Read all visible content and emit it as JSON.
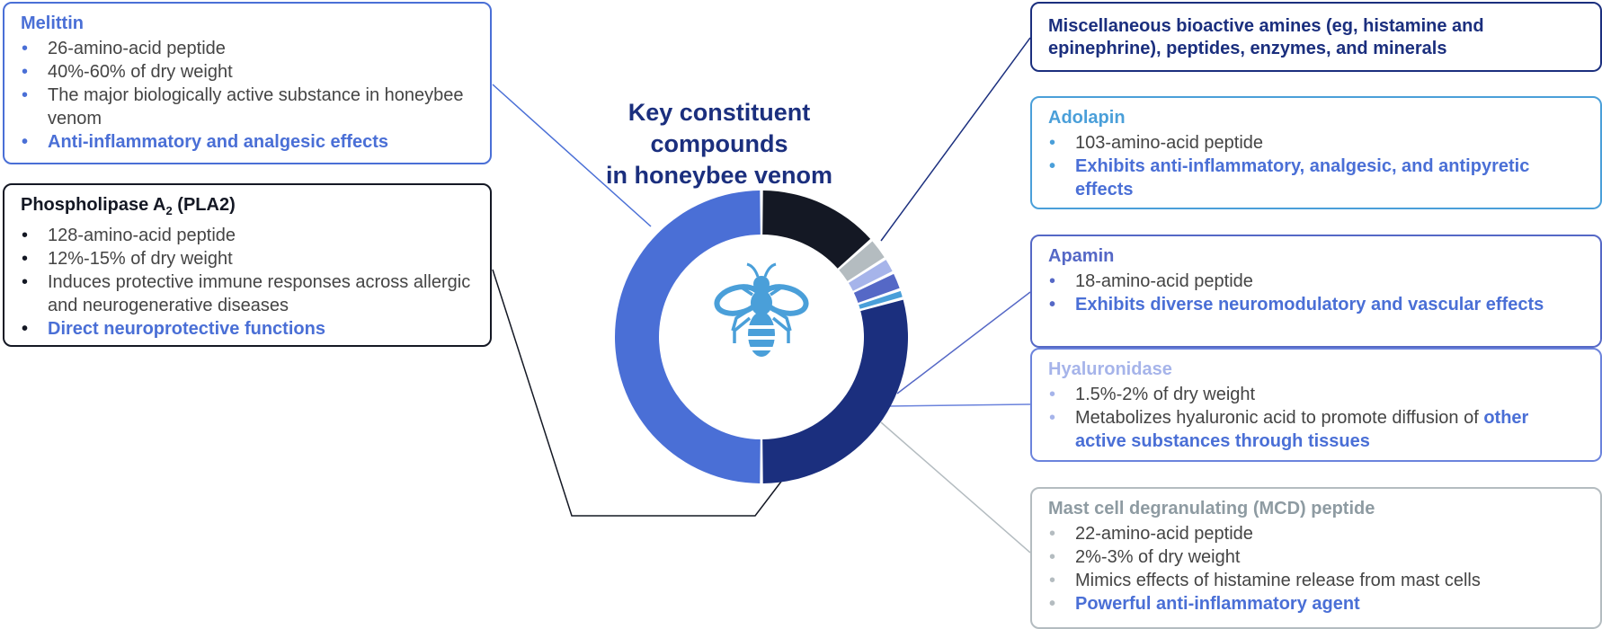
{
  "title": {
    "line1": "Key constituent compounds",
    "line2": "in honeybee venom"
  },
  "chart_data": {
    "type": "pie",
    "title": "Key constituent compounds in honeybee venom",
    "series": [
      {
        "name": "Melittin",
        "value": 50,
        "color": "#4a6fd6"
      },
      {
        "name": "Phospholipase A2 (PLA2)",
        "value": 13.5,
        "color": "#141824"
      },
      {
        "name": "Mast cell degranulating (MCD) peptide",
        "value": 2.5,
        "color": "#b4bcc0"
      },
      {
        "name": "Hyaluronidase",
        "value": 1.75,
        "color": "#a6b4ea"
      },
      {
        "name": "Apamin",
        "value": 2,
        "color": "#5568c6"
      },
      {
        "name": "Adolapin",
        "value": 1,
        "color": "#4a9fd9"
      },
      {
        "name": "Miscellaneous bioactive amines (eg, histamine and epinephrine), peptides, enzymes, and minerals",
        "value": 29.25,
        "color": "#1b2f7e"
      }
    ]
  },
  "center_icon": "bee-icon",
  "boxes": {
    "melittin": {
      "title": "Melittin",
      "items": [
        "26-amino-acid peptide",
        "40%-60% of dry weight",
        "The major biologically active substance in honeybee venom",
        "Anti-inflammatory and analgesic effects"
      ]
    },
    "pla2": {
      "title_prefix": "Phospholipase A",
      "title_sub": "2",
      "title_suffix": " (PLA2)",
      "items": [
        "128-amino-acid peptide",
        "12%-15% of dry weight",
        "Induces protective immune responses across allergic and neurogenerative diseases",
        "Direct neuroprotective functions"
      ]
    },
    "misc": {
      "title": "Miscellaneous bioactive amines (eg, histamine and epinephrine), peptides, enzymes, and minerals"
    },
    "adolapin": {
      "title": "Adolapin",
      "items": [
        "103-amino-acid peptide",
        "Exhibits anti-inflammatory, analgesic, and antipyretic effects"
      ]
    },
    "apamin": {
      "title": "Apamin",
      "items": [
        "18-amino-acid peptide",
        "Exhibits diverse neuromodulatory and vascular effects"
      ]
    },
    "hyaluronidase": {
      "title": "Hyaluronidase",
      "items": [
        "1.5%-2% of dry weight"
      ],
      "item2_plain": "Metabolizes hyaluronic acid to promote diffusion of ",
      "item2_bold": "other active substances through tissues"
    },
    "mcd": {
      "title": "Mast cell degranulating (MCD) peptide",
      "items": [
        "22-amino-acid peptide",
        "2%-3% of dry weight",
        "Mimics effects of histamine release from mast cells",
        "Powerful anti-inflammatory agent"
      ]
    }
  }
}
